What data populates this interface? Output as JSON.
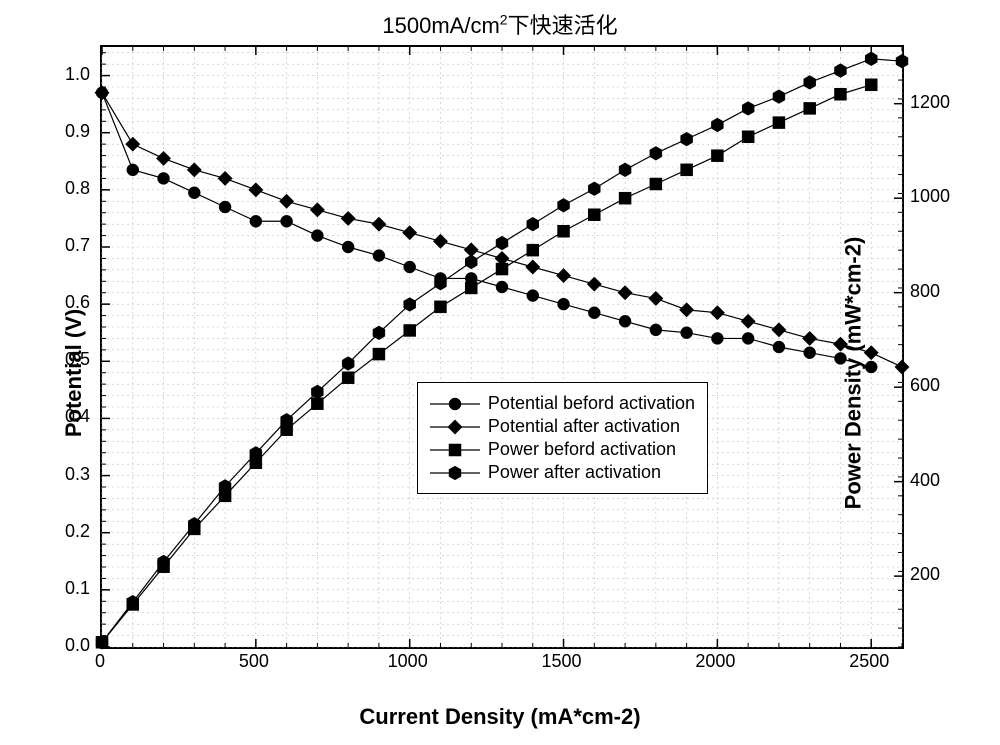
{
  "title_prefix": "1500mA/cm",
  "title_sup": "2",
  "title_suffix": "下快速活化",
  "xlabel": "Current Density (mA*cm-2)",
  "ylabel_left": "Potential (V)",
  "ylabel_right": "Power Density (mW*cm-2)",
  "x": {
    "min": 0,
    "max": 2600,
    "tick_major": [
      0,
      500,
      1000,
      1500,
      2000,
      2500
    ],
    "tick_minor_step": 100
  },
  "y_left": {
    "min": 0.0,
    "max": 1.05,
    "tick_major": [
      0.0,
      0.1,
      0.2,
      0.3,
      0.4,
      0.5,
      0.6,
      0.7,
      0.8,
      0.9,
      1.0
    ],
    "tick_minor_step": 0.02
  },
  "y_right": {
    "min": 50,
    "max": 1320,
    "tick_major": [
      200,
      400,
      600,
      800,
      1000,
      1200
    ],
    "tick_minor_step": 40
  },
  "colors": {
    "line": "#000000",
    "marker_fill": "#000000",
    "grid": "#bfbfbf",
    "background": "#ffffff",
    "text": "#000000"
  },
  "marker_size": 6,
  "line_width": 1.2,
  "grid_dash": "2,3",
  "legend": {
    "x": 1030,
    "y_left_top": 0.46,
    "items": [
      {
        "label": "Potential beford activation",
        "marker": "circle"
      },
      {
        "label": "Potential after activation",
        "marker": "diamond"
      },
      {
        "label": "Power beford activation",
        "marker": "square"
      },
      {
        "label": "Power after activation",
        "marker": "hexagon"
      }
    ]
  },
  "series": [
    {
      "name": "Potential beford activation",
      "axis": "left",
      "marker": "circle",
      "data": [
        [
          0,
          0.97
        ],
        [
          100,
          0.835
        ],
        [
          200,
          0.82
        ],
        [
          300,
          0.795
        ],
        [
          400,
          0.77
        ],
        [
          500,
          0.745
        ],
        [
          600,
          0.745
        ],
        [
          700,
          0.72
        ],
        [
          800,
          0.7
        ],
        [
          900,
          0.685
        ],
        [
          1000,
          0.665
        ],
        [
          1100,
          0.645
        ],
        [
          1200,
          0.645
        ],
        [
          1300,
          0.63
        ],
        [
          1400,
          0.615
        ],
        [
          1500,
          0.6
        ],
        [
          1600,
          0.585
        ],
        [
          1700,
          0.57
        ],
        [
          1800,
          0.555
        ],
        [
          1900,
          0.55
        ],
        [
          2000,
          0.54
        ],
        [
          2100,
          0.54
        ],
        [
          2200,
          0.525
        ],
        [
          2300,
          0.515
        ],
        [
          2400,
          0.505
        ],
        [
          2500,
          0.49
        ]
      ]
    },
    {
      "name": "Potential after activation",
      "axis": "left",
      "marker": "diamond",
      "data": [
        [
          0,
          0.97
        ],
        [
          100,
          0.88
        ],
        [
          200,
          0.855
        ],
        [
          300,
          0.835
        ],
        [
          400,
          0.82
        ],
        [
          500,
          0.8
        ],
        [
          600,
          0.78
        ],
        [
          700,
          0.765
        ],
        [
          800,
          0.75
        ],
        [
          900,
          0.74
        ],
        [
          1000,
          0.725
        ],
        [
          1100,
          0.71
        ],
        [
          1200,
          0.695
        ],
        [
          1300,
          0.68
        ],
        [
          1400,
          0.665
        ],
        [
          1500,
          0.65
        ],
        [
          1600,
          0.635
        ],
        [
          1700,
          0.62
        ],
        [
          1800,
          0.61
        ],
        [
          1900,
          0.59
        ],
        [
          2000,
          0.585
        ],
        [
          2100,
          0.57
        ],
        [
          2200,
          0.555
        ],
        [
          2300,
          0.54
        ],
        [
          2400,
          0.53
        ],
        [
          2500,
          0.515
        ],
        [
          2600,
          0.49
        ]
      ]
    },
    {
      "name": "Power beford activation",
      "axis": "right",
      "marker": "square",
      "data": [
        [
          0,
          60
        ],
        [
          100,
          140
        ],
        [
          200,
          220
        ],
        [
          300,
          300
        ],
        [
          400,
          370
        ],
        [
          500,
          440
        ],
        [
          600,
          510
        ],
        [
          700,
          565
        ],
        [
          800,
          620
        ],
        [
          900,
          670
        ],
        [
          1000,
          720
        ],
        [
          1100,
          770
        ],
        [
          1200,
          810
        ],
        [
          1300,
          850
        ],
        [
          1400,
          890
        ],
        [
          1500,
          930
        ],
        [
          1600,
          965
        ],
        [
          1700,
          1000
        ],
        [
          1800,
          1030
        ],
        [
          1900,
          1060
        ],
        [
          2000,
          1090
        ],
        [
          2100,
          1130
        ],
        [
          2200,
          1160
        ],
        [
          2300,
          1190
        ],
        [
          2400,
          1220
        ],
        [
          2500,
          1240
        ]
      ]
    },
    {
      "name": "Power after activation",
      "axis": "right",
      "marker": "hexagon",
      "data": [
        [
          0,
          60
        ],
        [
          100,
          145
        ],
        [
          200,
          230
        ],
        [
          300,
          310
        ],
        [
          400,
          390
        ],
        [
          500,
          460
        ],
        [
          600,
          530
        ],
        [
          700,
          590
        ],
        [
          800,
          650
        ],
        [
          900,
          715
        ],
        [
          1000,
          775
        ],
        [
          1100,
          820
        ],
        [
          1200,
          865
        ],
        [
          1300,
          905
        ],
        [
          1400,
          945
        ],
        [
          1500,
          985
        ],
        [
          1600,
          1020
        ],
        [
          1700,
          1060
        ],
        [
          1800,
          1095
        ],
        [
          1900,
          1125
        ],
        [
          2000,
          1155
        ],
        [
          2100,
          1190
        ],
        [
          2200,
          1215
        ],
        [
          2300,
          1245
        ],
        [
          2400,
          1270
        ],
        [
          2500,
          1295
        ],
        [
          2600,
          1290
        ]
      ]
    }
  ]
}
